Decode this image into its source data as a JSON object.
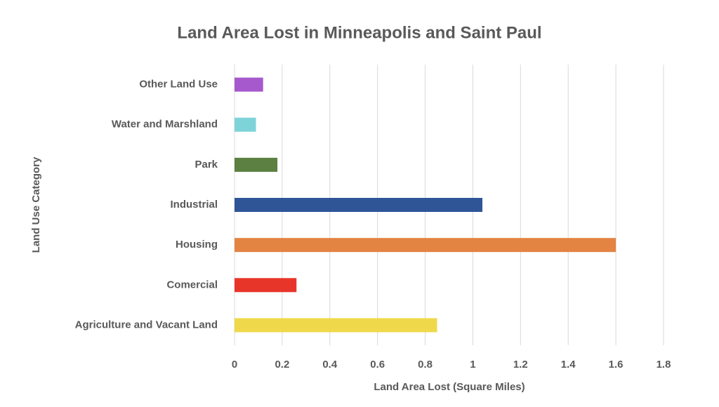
{
  "chart_data": {
    "type": "bar",
    "orientation": "horizontal",
    "title": "Land Area Lost in Minneapolis and Saint Paul",
    "x_label": "Land Area Lost (Square Miles)",
    "y_label": "Land Use Category",
    "categories": [
      "Agriculture and Vacant Land",
      "Comercial",
      "Housing",
      "Industrial",
      "Park",
      "Water and Marshland",
      "Other Land Use"
    ],
    "values": [
      0.85,
      0.26,
      1.6,
      1.04,
      0.18,
      0.09,
      0.12
    ],
    "colors": [
      "#efd94a",
      "#e8352a",
      "#e38443",
      "#2f5597",
      "#5b8041",
      "#7ed3d9",
      "#a659cc"
    ],
    "xlim": [
      0,
      1.8
    ],
    "xticks": [
      0,
      0.2,
      0.4,
      0.6,
      0.8,
      1,
      1.2,
      1.4,
      1.6,
      1.8
    ],
    "grid": true
  }
}
